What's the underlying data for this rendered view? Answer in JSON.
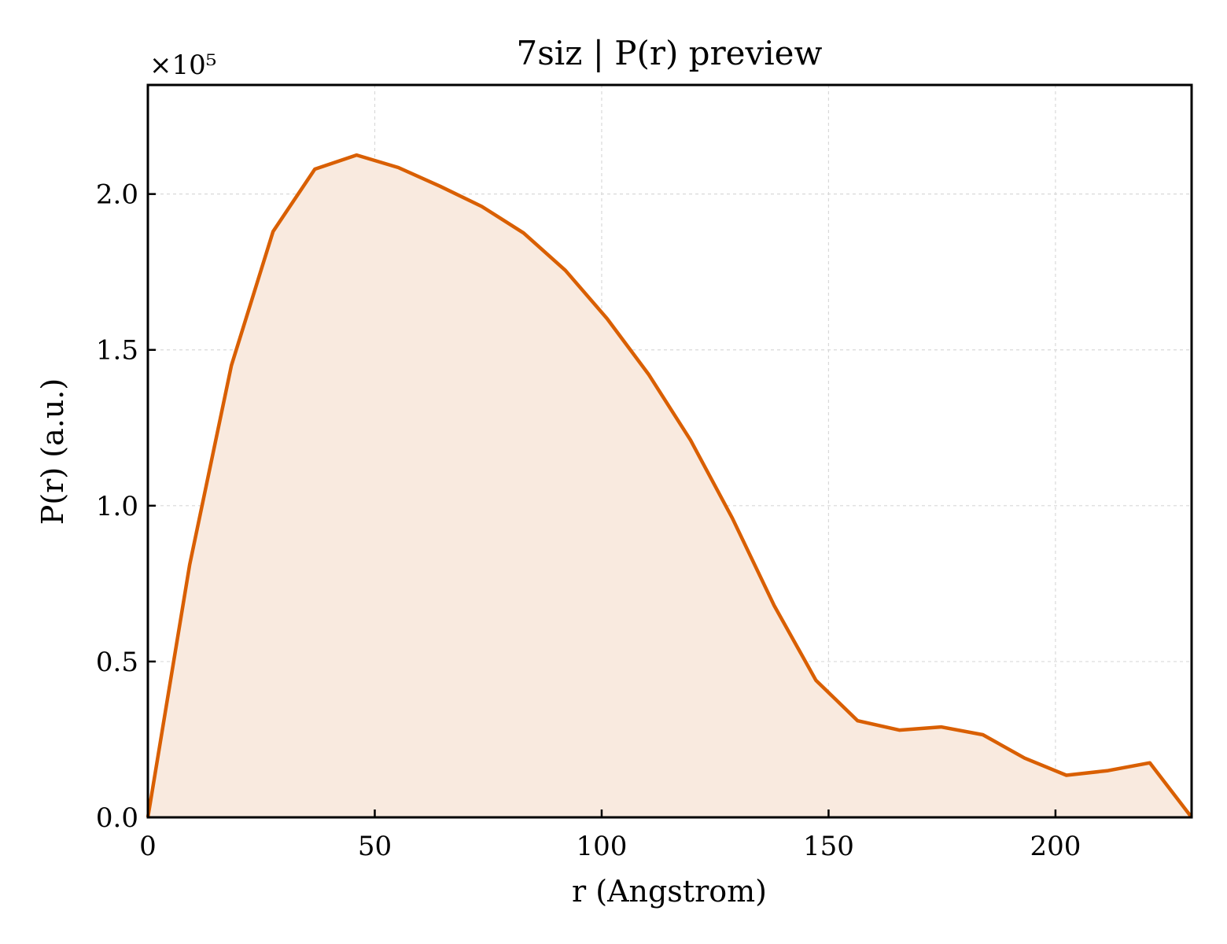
{
  "chart_data": {
    "type": "area",
    "title": "7siz | P(r) preview",
    "xlabel": "r (Angstrom)",
    "ylabel": "P(r) (a.u.)",
    "y_offset_label": "×10⁵",
    "y_scale": 100000,
    "xlim": [
      0,
      230
    ],
    "ylim": [
      0,
      235000
    ],
    "xticks": [
      0,
      50,
      100,
      150,
      200
    ],
    "xtick_labels": [
      "0",
      "50",
      "100",
      "150",
      "200"
    ],
    "yticks": [
      0,
      50000,
      100000,
      150000,
      200000
    ],
    "ytick_labels": [
      "0.0",
      "0.5",
      "1.0",
      "1.5",
      "2.0"
    ],
    "grid": true,
    "line_color": "#d95f02",
    "fill_color": "#f9eadf",
    "series": [
      {
        "x": [
          0,
          9.2,
          18.4,
          27.6,
          36.8,
          46.0,
          55.2,
          64.4,
          73.6,
          82.8,
          92.0,
          101.2,
          110.4,
          119.6,
          128.8,
          138.0,
          147.2,
          156.4,
          165.6,
          174.8,
          184.0,
          193.2,
          202.4,
          211.6,
          220.8,
          230.0
        ],
        "y": [
          0,
          81000,
          145000,
          188000,
          208000,
          212500,
          208500,
          202500,
          196000,
          187500,
          175500,
          160000,
          142000,
          121000,
          96000,
          68000,
          44000,
          31000,
          28000,
          29000,
          26500,
          19000,
          13500,
          15000,
          17500,
          0
        ]
      }
    ]
  }
}
